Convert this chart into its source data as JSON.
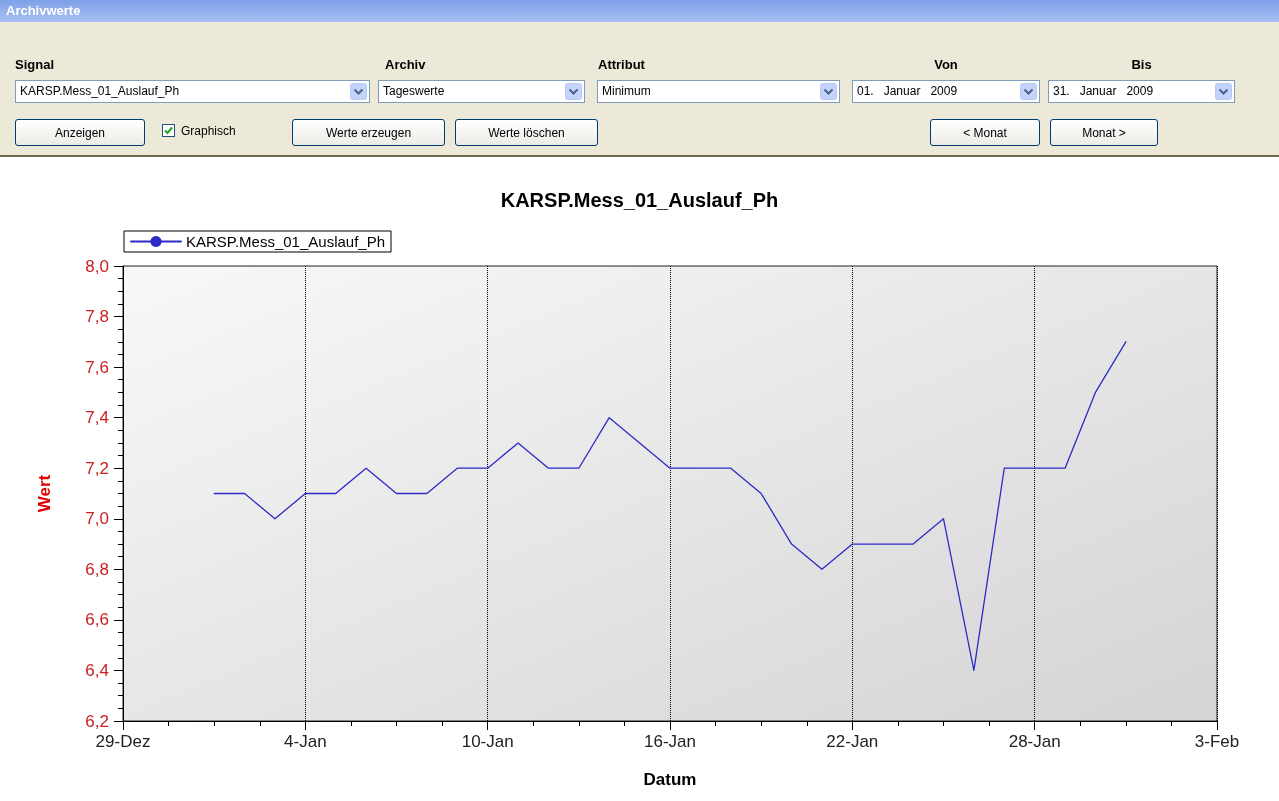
{
  "chart_data": {
    "type": "line",
    "title": "KARSP.Mess_01_Auslauf_Ph",
    "xlabel": "Datum",
    "ylabel": "Wert",
    "annotations": [
      "Archivwerte",
      "Signal",
      "Archiv",
      "Attribut",
      "Von",
      "Bis",
      "KARSP.Mess_01_Auslauf_Ph",
      "Tageswerte",
      "Minimum",
      "01.   Januar   2009",
      "31.   Januar   2009",
      "Anzeigen",
      "Graphisch",
      "Werte erzeugen",
      "Werte löschen",
      "< Monat",
      "Monat >"
    ],
    "x": [
      "2009-01-01",
      "2009-01-02",
      "2009-01-03",
      "2009-01-04",
      "2009-01-05",
      "2009-01-06",
      "2009-01-07",
      "2009-01-08",
      "2009-01-09",
      "2009-01-10",
      "2009-01-11",
      "2009-01-12",
      "2009-01-13",
      "2009-01-14",
      "2009-01-15",
      "2009-01-16",
      "2009-01-17",
      "2009-01-18",
      "2009-01-19",
      "2009-01-20",
      "2009-01-21",
      "2009-01-22",
      "2009-01-23",
      "2009-01-24",
      "2009-01-25",
      "2009-01-26",
      "2009-01-27",
      "2009-01-28",
      "2009-01-29",
      "2009-01-30",
      "2009-01-31"
    ],
    "series": [
      {
        "name": "KARSP.Mess_01_Auslauf_Ph",
        "color": "#2b2bc8",
        "values": [
          7.1,
          7.1,
          7.0,
          7.1,
          7.1,
          7.2,
          7.1,
          7.1,
          7.2,
          7.2,
          7.3,
          7.2,
          7.2,
          7.4,
          7.3,
          7.2,
          7.2,
          7.2,
          7.1,
          6.9,
          6.8,
          6.9,
          6.9,
          6.9,
          7.0,
          6.4,
          7.2,
          7.2,
          7.2,
          7.5,
          7.7
        ]
      }
    ],
    "xlim": [
      "2008-12-29",
      "2009-02-03"
    ],
    "xticks": [
      {
        "value": "2008-12-29",
        "label": "29-Dez"
      },
      {
        "value": "2009-01-04",
        "label": "4-Jan"
      },
      {
        "value": "2009-01-10",
        "label": "10-Jan"
      },
      {
        "value": "2009-01-16",
        "label": "16-Jan"
      },
      {
        "value": "2009-01-22",
        "label": "22-Jan"
      },
      {
        "value": "2009-01-28",
        "label": "28-Jan"
      },
      {
        "value": "2009-02-03",
        "label": "3-Feb"
      }
    ],
    "ylim": [
      6.2,
      8.0
    ],
    "yticks": [
      {
        "value": 6.2,
        "label": "6,2"
      },
      {
        "value": 6.4,
        "label": "6,4"
      },
      {
        "value": 6.6,
        "label": "6,6"
      },
      {
        "value": 6.8,
        "label": "6,8"
      },
      {
        "value": 7.0,
        "label": "7,0"
      },
      {
        "value": 7.2,
        "label": "7,2"
      },
      {
        "value": 7.4,
        "label": "7,4"
      },
      {
        "value": 7.6,
        "label": "7,6"
      },
      {
        "value": 7.8,
        "label": "7,8"
      },
      {
        "value": 8.0,
        "label": "8,0"
      }
    ],
    "grid": "x",
    "legend": "top left",
    "marker": "none",
    "line_style": "solid"
  }
}
